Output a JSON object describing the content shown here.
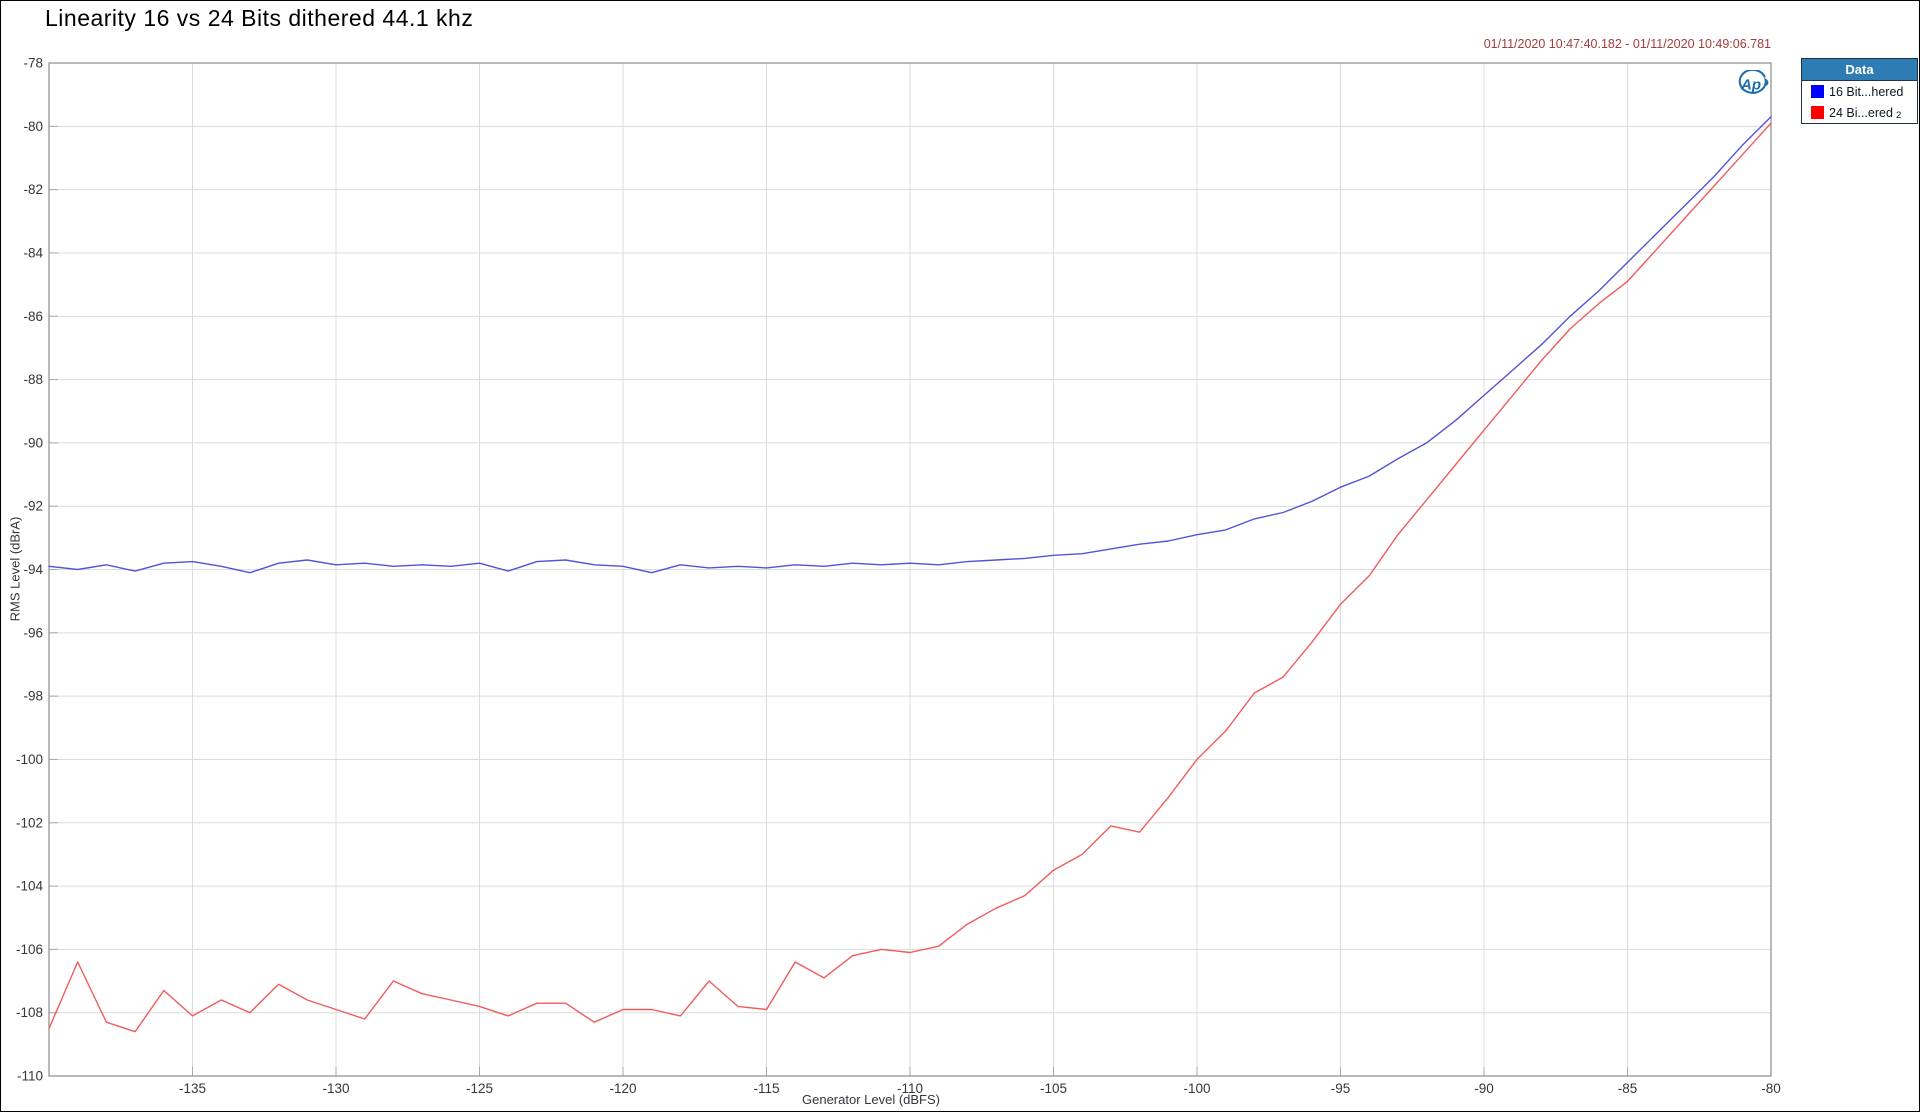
{
  "title": "Linearity 16 vs 24 Bits dithered 44.1 khz",
  "timestamp": "01/11/2020 10:47:40.182 - 01/11/2020 10:49:06.781",
  "logo_text": "Ap",
  "colors": {
    "timestamp": "#a33c3c",
    "legend_header_bg": "#2e7cb4",
    "grid": "#dcdcdc",
    "plot_border": "#8c8c8c",
    "blue_line": "#5353d6",
    "red_line": "#f05c5c"
  },
  "legend": {
    "header": "Data",
    "entries": [
      {
        "label": "16 Bit...hered",
        "suffix": "",
        "swatch_color": "#0000ff"
      },
      {
        "label": "24 Bi...ered",
        "suffix": "2",
        "swatch_color": "#ff0000"
      }
    ]
  },
  "chart_data": {
    "type": "line",
    "title": "Linearity 16 vs 24 Bits dithered 44.1 khz",
    "xlabel": "Generator Level (dBFS)",
    "ylabel": "RMS Level (dBrA)",
    "xlim": [
      -140,
      -80
    ],
    "ylim": [
      -110,
      -78
    ],
    "x_ticks": [
      -135,
      -130,
      -125,
      -120,
      -115,
      -110,
      -105,
      -100,
      -95,
      -90,
      -85,
      -80
    ],
    "y_ticks": [
      -78,
      -80,
      -82,
      -84,
      -86,
      -88,
      -90,
      -92,
      -94,
      -96,
      -98,
      -100,
      -102,
      -104,
      -106,
      -108,
      -110
    ],
    "grid": true,
    "legend_position": "outside-top-right",
    "series": [
      {
        "name": "16 Bit...hered",
        "color": "#5353d6",
        "x": [
          -140,
          -139,
          -138,
          -137,
          -136,
          -135,
          -134,
          -133,
          -132,
          -131,
          -130,
          -129,
          -128,
          -127,
          -126,
          -125,
          -124,
          -123,
          -122,
          -121,
          -120,
          -119,
          -118,
          -117,
          -116,
          -115,
          -114,
          -113,
          -112,
          -111,
          -110,
          -109,
          -108,
          -107,
          -106,
          -105,
          -104,
          -103,
          -102,
          -101,
          -100,
          -99,
          -98,
          -97,
          -96,
          -95,
          -94,
          -93,
          -92,
          -91,
          -90,
          -89,
          -88,
          -87,
          -86,
          -85,
          -84,
          -83,
          -82,
          -81,
          -80
        ],
        "y": [
          -93.9,
          -94.0,
          -93.85,
          -94.05,
          -93.8,
          -93.75,
          -93.9,
          -94.1,
          -93.8,
          -93.7,
          -93.85,
          -93.8,
          -93.9,
          -93.85,
          -93.9,
          -93.8,
          -94.05,
          -93.75,
          -93.7,
          -93.85,
          -93.9,
          -94.1,
          -93.85,
          -93.95,
          -93.9,
          -93.95,
          -93.85,
          -93.9,
          -93.8,
          -93.85,
          -93.8,
          -93.85,
          -93.75,
          -93.7,
          -93.65,
          -93.55,
          -93.5,
          -93.35,
          -93.2,
          -93.1,
          -92.9,
          -92.75,
          -92.4,
          -92.2,
          -91.85,
          -91.4,
          -91.05,
          -90.5,
          -90.0,
          -89.3,
          -88.5,
          -87.7,
          -86.9,
          -86.0,
          -85.2,
          -84.3,
          -83.4,
          -82.5,
          -81.6,
          -80.6,
          -79.7
        ]
      },
      {
        "name": "24 Bi...ered 2",
        "color": "#f05c5c",
        "x": [
          -140,
          -139,
          -138,
          -137,
          -136,
          -135,
          -134,
          -133,
          -132,
          -131,
          -130,
          -129,
          -128,
          -127,
          -126,
          -125,
          -124,
          -123,
          -122,
          -121,
          -120,
          -119,
          -118,
          -117,
          -116,
          -115,
          -114,
          -113,
          -112,
          -111,
          -110,
          -109,
          -108,
          -107,
          -106,
          -105,
          -104,
          -103,
          -102,
          -101,
          -100,
          -99,
          -98,
          -97,
          -96,
          -95,
          -94,
          -93,
          -92,
          -91,
          -90,
          -89,
          -88,
          -87,
          -86,
          -85,
          -84,
          -83,
          -82,
          -81,
          -80
        ],
        "y": [
          -108.5,
          -106.4,
          -108.3,
          -108.6,
          -107.3,
          -108.1,
          -107.6,
          -108.0,
          -107.1,
          -107.6,
          -107.9,
          -108.2,
          -107.0,
          -107.4,
          -107.6,
          -107.8,
          -108.1,
          -107.7,
          -107.7,
          -108.3,
          -107.9,
          -107.9,
          -108.1,
          -107.0,
          -107.8,
          -107.9,
          -106.4,
          -106.9,
          -106.2,
          -106.0,
          -106.1,
          -105.9,
          -105.2,
          -104.7,
          -104.3,
          -103.5,
          -103.0,
          -102.1,
          -102.3,
          -101.2,
          -100.0,
          -99.1,
          -97.9,
          -97.4,
          -96.3,
          -95.1,
          -94.2,
          -92.9,
          -91.8,
          -90.7,
          -89.6,
          -88.5,
          -87.4,
          -86.4,
          -85.6,
          -84.9,
          -83.9,
          -82.9,
          -81.9,
          -80.9,
          -79.9
        ]
      }
    ]
  },
  "plot_geometry_note": "x axis -140 to -80 dBFS, y axis -78 to -110 dBrA"
}
